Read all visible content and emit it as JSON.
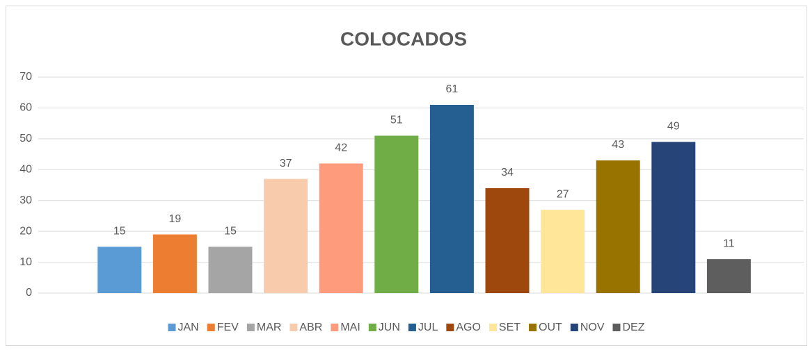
{
  "chart_data": {
    "type": "bar",
    "title": "COLOCADOS",
    "categories": [
      "JAN",
      "FEV",
      "MAR",
      "ABR",
      "MAI",
      "JUN",
      "JUL",
      "AGO",
      "SET",
      "OUT",
      "NOV",
      "DEZ"
    ],
    "values": [
      15,
      19,
      15,
      37,
      42,
      51,
      61,
      34,
      27,
      43,
      49,
      11
    ],
    "colors": [
      "#5b9bd5",
      "#ed7d31",
      "#a5a5a5",
      "#f8cbad",
      "#ff9b7d",
      "#70ad47",
      "#255e91",
      "#9e480e",
      "#ffe699",
      "#997300",
      "#264478",
      "#5e5e5e"
    ],
    "ylim": [
      0,
      70
    ],
    "yticks": [
      0,
      10,
      20,
      30,
      40,
      50,
      60,
      70
    ],
    "grid": true,
    "legend": "bottom"
  }
}
